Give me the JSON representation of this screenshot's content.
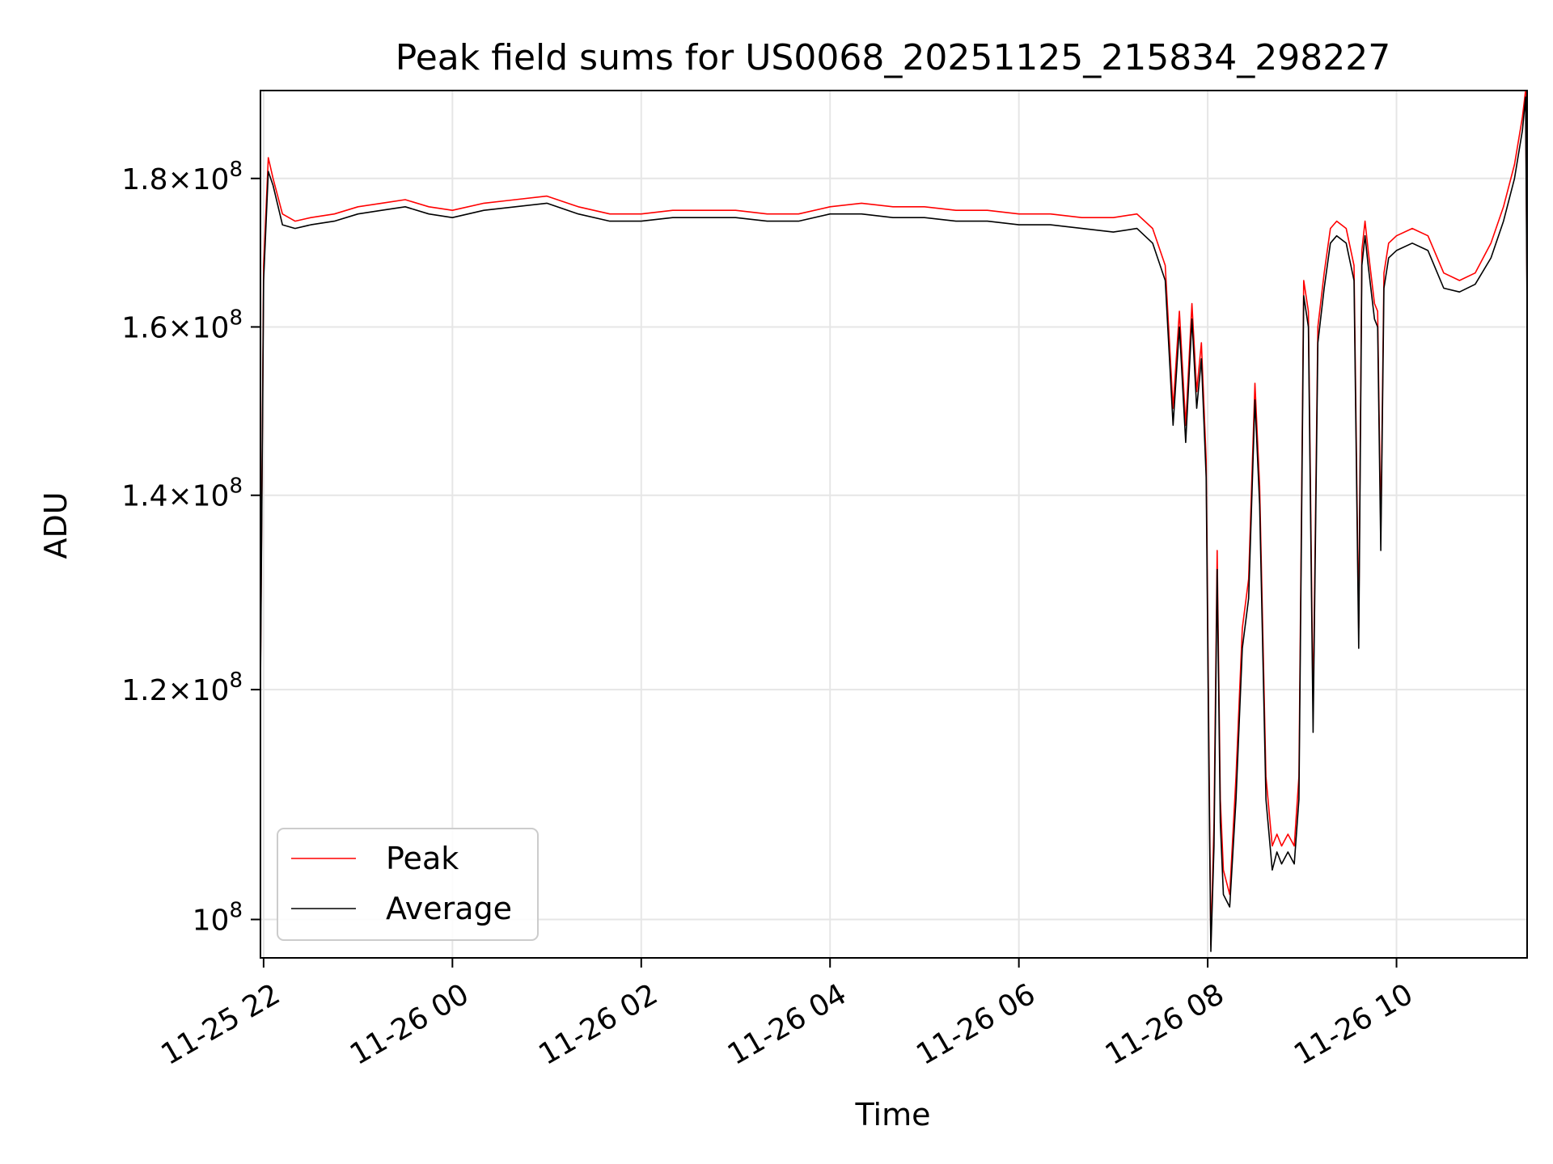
{
  "chart_data": {
    "type": "line",
    "title": "Peak field sums for US0068_20251125_215834_298227",
    "xlabel": "Time",
    "ylabel": "ADU",
    "y_scale": "log",
    "grid": true,
    "legend_position": "lower-left",
    "xlim": [
      "2025-11-25 21:58",
      "2025-11-26 11:23"
    ],
    "ylim": [
      97000000,
      193000000
    ],
    "x_ticks": [
      {
        "value": "2025-11-25 22:00",
        "label": "11-25 22"
      },
      {
        "value": "2025-11-26 00:00",
        "label": "11-26 00"
      },
      {
        "value": "2025-11-26 02:00",
        "label": "11-26 02"
      },
      {
        "value": "2025-11-26 04:00",
        "label": "11-26 04"
      },
      {
        "value": "2025-11-26 06:00",
        "label": "11-26 06"
      },
      {
        "value": "2025-11-26 08:00",
        "label": "11-26 08"
      },
      {
        "value": "2025-11-26 10:00",
        "label": "11-26 10"
      }
    ],
    "y_ticks": [
      {
        "value": 100000000,
        "mantissa": "",
        "exponent": "8"
      },
      {
        "value": 120000000,
        "mantissa": "1.2",
        "exponent": "8"
      },
      {
        "value": 140000000,
        "mantissa": "1.4",
        "exponent": "8"
      },
      {
        "value": 160000000,
        "mantissa": "1.6",
        "exponent": "8"
      },
      {
        "value": 180000000,
        "mantissa": "1.8",
        "exponent": "8"
      }
    ],
    "tick_base": "10",
    "tick_times": "×",
    "colors": {
      "peak": "#ff0000",
      "average": "#000000",
      "grid": "#e6e6e6"
    },
    "series": [
      {
        "name": "Peak",
        "x": [
          "2025-11-25 21:58",
          "2025-11-25 22:00",
          "2025-11-25 22:03",
          "2025-11-25 22:06",
          "2025-11-25 22:12",
          "2025-11-25 22:20",
          "2025-11-25 22:30",
          "2025-11-25 22:45",
          "2025-11-25 23:00",
          "2025-11-25 23:15",
          "2025-11-25 23:30",
          "2025-11-25 23:45",
          "2025-11-26 00:00",
          "2025-11-26 00:20",
          "2025-11-26 00:40",
          "2025-11-26 01:00",
          "2025-11-26 01:20",
          "2025-11-26 01:40",
          "2025-11-26 02:00",
          "2025-11-26 02:20",
          "2025-11-26 02:40",
          "2025-11-26 03:00",
          "2025-11-26 03:20",
          "2025-11-26 03:40",
          "2025-11-26 04:00",
          "2025-11-26 04:20",
          "2025-11-26 04:40",
          "2025-11-26 05:00",
          "2025-11-26 05:20",
          "2025-11-26 05:40",
          "2025-11-26 06:00",
          "2025-11-26 06:20",
          "2025-11-26 06:40",
          "2025-11-26 07:00",
          "2025-11-26 07:15",
          "2025-11-26 07:25",
          "2025-11-26 07:33",
          "2025-11-26 07:38",
          "2025-11-26 07:42",
          "2025-11-26 07:46",
          "2025-11-26 07:50",
          "2025-11-26 07:53",
          "2025-11-26 07:56",
          "2025-11-26 07:59",
          "2025-11-26 08:01",
          "2025-11-26 08:02",
          "2025-11-26 08:04",
          "2025-11-26 08:06",
          "2025-11-26 08:08",
          "2025-11-26 08:10",
          "2025-11-26 08:14",
          "2025-11-26 08:18",
          "2025-11-26 08:22",
          "2025-11-26 08:26",
          "2025-11-26 08:30",
          "2025-11-26 08:33",
          "2025-11-26 08:37",
          "2025-11-26 08:41",
          "2025-11-26 08:44",
          "2025-11-26 08:47",
          "2025-11-26 08:51",
          "2025-11-26 08:55",
          "2025-11-26 08:58",
          "2025-11-26 09:01",
          "2025-11-26 09:04",
          "2025-11-26 09:07",
          "2025-11-26 09:10",
          "2025-11-26 09:14",
          "2025-11-26 09:18",
          "2025-11-26 09:22",
          "2025-11-26 09:28",
          "2025-11-26 09:33",
          "2025-11-26 09:36",
          "2025-11-26 09:38",
          "2025-11-26 09:40",
          "2025-11-26 09:42",
          "2025-11-26 09:46",
          "2025-11-26 09:48",
          "2025-11-26 09:50",
          "2025-11-26 09:52",
          "2025-11-26 09:55",
          "2025-11-26 10:00",
          "2025-11-26 10:10",
          "2025-11-26 10:20",
          "2025-11-26 10:30",
          "2025-11-26 10:40",
          "2025-11-26 10:50",
          "2025-11-26 11:00",
          "2025-11-26 11:08",
          "2025-11-26 11:15",
          "2025-11-26 11:20",
          "2025-11-26 11:22",
          "2025-11-26 11:23"
        ],
        "values": [
          121000000,
          168000000,
          183000000,
          180000000,
          175000000,
          174000000,
          174500000,
          175000000,
          176000000,
          176500000,
          177000000,
          176000000,
          175500000,
          176500000,
          177000000,
          177500000,
          176000000,
          175000000,
          175000000,
          175500000,
          175500000,
          175500000,
          175000000,
          175000000,
          176000000,
          176500000,
          176000000,
          176000000,
          175500000,
          175500000,
          175000000,
          175000000,
          174500000,
          174500000,
          175000000,
          173000000,
          168000000,
          150000000,
          162000000,
          148000000,
          163000000,
          152000000,
          158000000,
          144000000,
          112000000,
          98000000,
          108000000,
          134000000,
          110000000,
          104000000,
          102000000,
          112000000,
          126000000,
          131000000,
          153000000,
          141000000,
          112000000,
          106000000,
          107000000,
          106000000,
          107000000,
          106000000,
          112000000,
          166000000,
          162000000,
          118000000,
          160000000,
          167000000,
          173000000,
          174000000,
          173000000,
          168000000,
          126000000,
          170000000,
          174000000,
          170000000,
          163000000,
          162000000,
          136000000,
          167000000,
          171000000,
          172000000,
          173000000,
          172000000,
          167000000,
          166000000,
          167000000,
          171000000,
          176000000,
          182000000,
          189000000,
          193000000,
          163000000
        ]
      },
      {
        "name": "Average",
        "x": [
          "2025-11-25 21:58",
          "2025-11-25 22:00",
          "2025-11-25 22:03",
          "2025-11-25 22:06",
          "2025-11-25 22:12",
          "2025-11-25 22:20",
          "2025-11-25 22:30",
          "2025-11-25 22:45",
          "2025-11-25 23:00",
          "2025-11-25 23:15",
          "2025-11-25 23:30",
          "2025-11-25 23:45",
          "2025-11-26 00:00",
          "2025-11-26 00:20",
          "2025-11-26 00:40",
          "2025-11-26 01:00",
          "2025-11-26 01:20",
          "2025-11-26 01:40",
          "2025-11-26 02:00",
          "2025-11-26 02:20",
          "2025-11-26 02:40",
          "2025-11-26 03:00",
          "2025-11-26 03:20",
          "2025-11-26 03:40",
          "2025-11-26 04:00",
          "2025-11-26 04:20",
          "2025-11-26 04:40",
          "2025-11-26 05:00",
          "2025-11-26 05:20",
          "2025-11-26 05:40",
          "2025-11-26 06:00",
          "2025-11-26 06:20",
          "2025-11-26 06:40",
          "2025-11-26 07:00",
          "2025-11-26 07:15",
          "2025-11-26 07:25",
          "2025-11-26 07:33",
          "2025-11-26 07:38",
          "2025-11-26 07:42",
          "2025-11-26 07:46",
          "2025-11-26 07:50",
          "2025-11-26 07:53",
          "2025-11-26 07:56",
          "2025-11-26 07:59",
          "2025-11-26 08:01",
          "2025-11-26 08:02",
          "2025-11-26 08:04",
          "2025-11-26 08:06",
          "2025-11-26 08:08",
          "2025-11-26 08:10",
          "2025-11-26 08:14",
          "2025-11-26 08:18",
          "2025-11-26 08:22",
          "2025-11-26 08:26",
          "2025-11-26 08:30",
          "2025-11-26 08:33",
          "2025-11-26 08:37",
          "2025-11-26 08:41",
          "2025-11-26 08:44",
          "2025-11-26 08:47",
          "2025-11-26 08:51",
          "2025-11-26 08:55",
          "2025-11-26 08:58",
          "2025-11-26 09:01",
          "2025-11-26 09:04",
          "2025-11-26 09:07",
          "2025-11-26 09:10",
          "2025-11-26 09:14",
          "2025-11-26 09:18",
          "2025-11-26 09:22",
          "2025-11-26 09:28",
          "2025-11-26 09:33",
          "2025-11-26 09:36",
          "2025-11-26 09:38",
          "2025-11-26 09:40",
          "2025-11-26 09:42",
          "2025-11-26 09:46",
          "2025-11-26 09:48",
          "2025-11-26 09:50",
          "2025-11-26 09:52",
          "2025-11-26 09:55",
          "2025-11-26 10:00",
          "2025-11-26 10:10",
          "2025-11-26 10:20",
          "2025-11-26 10:30",
          "2025-11-26 10:40",
          "2025-11-26 10:50",
          "2025-11-26 11:00",
          "2025-11-26 11:08",
          "2025-11-26 11:15",
          "2025-11-26 11:20",
          "2025-11-26 11:22",
          "2025-11-26 11:23"
        ],
        "values": [
          120000000,
          166000000,
          181000000,
          179000000,
          173500000,
          173000000,
          173500000,
          174000000,
          175000000,
          175500000,
          176000000,
          175000000,
          174500000,
          175500000,
          176000000,
          176500000,
          175000000,
          174000000,
          174000000,
          174500000,
          174500000,
          174500000,
          174000000,
          174000000,
          175000000,
          175000000,
          174500000,
          174500000,
          174000000,
          174000000,
          173500000,
          173500000,
          173000000,
          172500000,
          173000000,
          171000000,
          166000000,
          148000000,
          160000000,
          146000000,
          161000000,
          150000000,
          156000000,
          142000000,
          110000000,
          97500000,
          106000000,
          132000000,
          108000000,
          102000000,
          101000000,
          110000000,
          124000000,
          129000000,
          151000000,
          139000000,
          110000000,
          104000000,
          105500000,
          104500000,
          105500000,
          104500000,
          110000000,
          164000000,
          160000000,
          116000000,
          158000000,
          165000000,
          171000000,
          172000000,
          171000000,
          166000000,
          124000000,
          168000000,
          172000000,
          168000000,
          161000000,
          160000000,
          134000000,
          165000000,
          169000000,
          170000000,
          171000000,
          170000000,
          165000000,
          164500000,
          165500000,
          169000000,
          174000000,
          180000000,
          187000000,
          192000000,
          161000000
        ]
      }
    ]
  }
}
